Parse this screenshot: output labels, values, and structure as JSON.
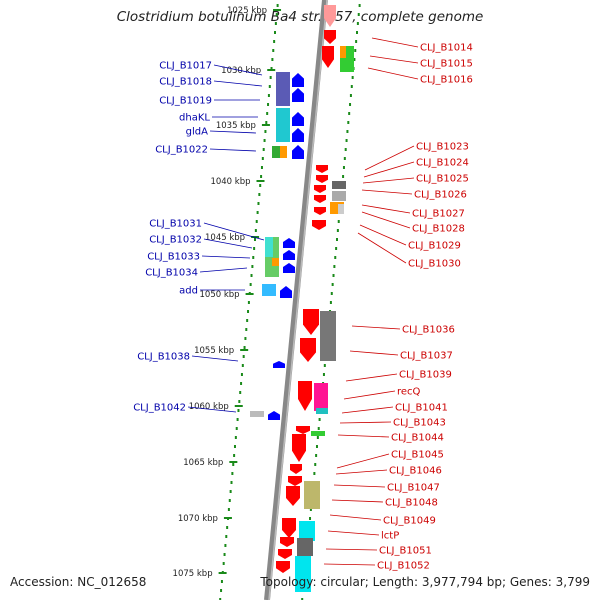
{
  "header": {
    "title": "Clostridium botulinum Ba4 str. 657, complete genome"
  },
  "footer": {
    "accession": "Accession: NC_012658",
    "summary": "Topology: circular; Length: 3,977,794 bp; Genes: 3,799"
  },
  "colors": {
    "backbone": "#888888",
    "track_dots": "#1a8a1a",
    "forward_label": "#0000aa",
    "reverse_label": "#cc0000",
    "forward_strand": "#0000ff",
    "reverse_strand": "#ff0000",
    "scale_text": "#222222"
  },
  "scale_ticks": [
    "1025 kbp",
    "1030 kbp",
    "1035 kbp",
    "1040 kbp",
    "1045 kbp",
    "1050 kbp",
    "1055 kbp",
    "1060 kbp",
    "1065 kbp",
    "1070 kbp",
    "1075 kbp"
  ],
  "forward_genes": [
    {
      "label": "CLJ_B1017",
      "color": "#7f7fc0"
    },
    {
      "label": "CLJ_B1018",
      "color": "#6a5acd"
    },
    {
      "label": "CLJ_B1019",
      "color": "#6a5acd"
    },
    {
      "label": "dhaKL",
      "color": "#20d0d0"
    },
    {
      "label": "gldA",
      "color": "#20c0c0"
    },
    {
      "label": "CLJ_B1022",
      "color": "#ff9900"
    },
    {
      "label": "CLJ_B1031",
      "color": "#40e0d0"
    },
    {
      "label": "CLJ_B1032",
      "color": "#66cc66"
    },
    {
      "label": "CLJ_B1033",
      "color": "#ff9900"
    },
    {
      "label": "CLJ_B1034",
      "color": "#669933"
    },
    {
      "label": "add",
      "color": "#33bbff"
    },
    {
      "label": "CLJ_B1038",
      "color": "#0000ff"
    },
    {
      "label": "CLJ_B1042",
      "color": "#bbbbbb"
    }
  ],
  "reverse_genes": [
    {
      "label": "CLJ_B1014",
      "color": "#ff9999"
    },
    {
      "label": "CLJ_B1015",
      "color": "#33cc33"
    },
    {
      "label": "CLJ_B1016",
      "color": "#ff9900"
    },
    {
      "label": "CLJ_B1023",
      "color": "#ff0000"
    },
    {
      "label": "CLJ_B1024",
      "color": "#ff0000"
    },
    {
      "label": "CLJ_B1025",
      "color": "#777777"
    },
    {
      "label": "CLJ_B1026",
      "color": "#aaaaaa"
    },
    {
      "label": "CLJ_B1027",
      "color": "#ff9900"
    },
    {
      "label": "CLJ_B1028",
      "color": "#ff0000"
    },
    {
      "label": "CLJ_B1029",
      "color": "#ff0000"
    },
    {
      "label": "CLJ_B1030",
      "color": "#ff0000"
    },
    {
      "label": "CLJ_B1036",
      "color": "#777777"
    },
    {
      "label": "CLJ_B1037",
      "color": "#ff0000"
    },
    {
      "label": "CLJ_B1039",
      "color": "#ff0000"
    },
    {
      "label": "recQ",
      "color": "#ff1493"
    },
    {
      "label": "CLJ_B1041",
      "color": "#20c0c0"
    },
    {
      "label": "CLJ_B1043",
      "color": "#33cc33"
    },
    {
      "label": "CLJ_B1044",
      "color": "#ff0000"
    },
    {
      "label": "CLJ_B1045",
      "color": "#ff0000"
    },
    {
      "label": "CLJ_B1046",
      "color": "#ff0000"
    },
    {
      "label": "CLJ_B1047",
      "color": "#bdb76b"
    },
    {
      "label": "CLJ_B1048",
      "color": "#ff0000"
    },
    {
      "label": "CLJ_B1049",
      "color": "#ff0000"
    },
    {
      "label": "lctP",
      "color": "#00e5ee"
    },
    {
      "label": "CLJ_B1051",
      "color": "#777777"
    },
    {
      "label": "CLJ_B1052",
      "color": "#00e5ee"
    }
  ]
}
